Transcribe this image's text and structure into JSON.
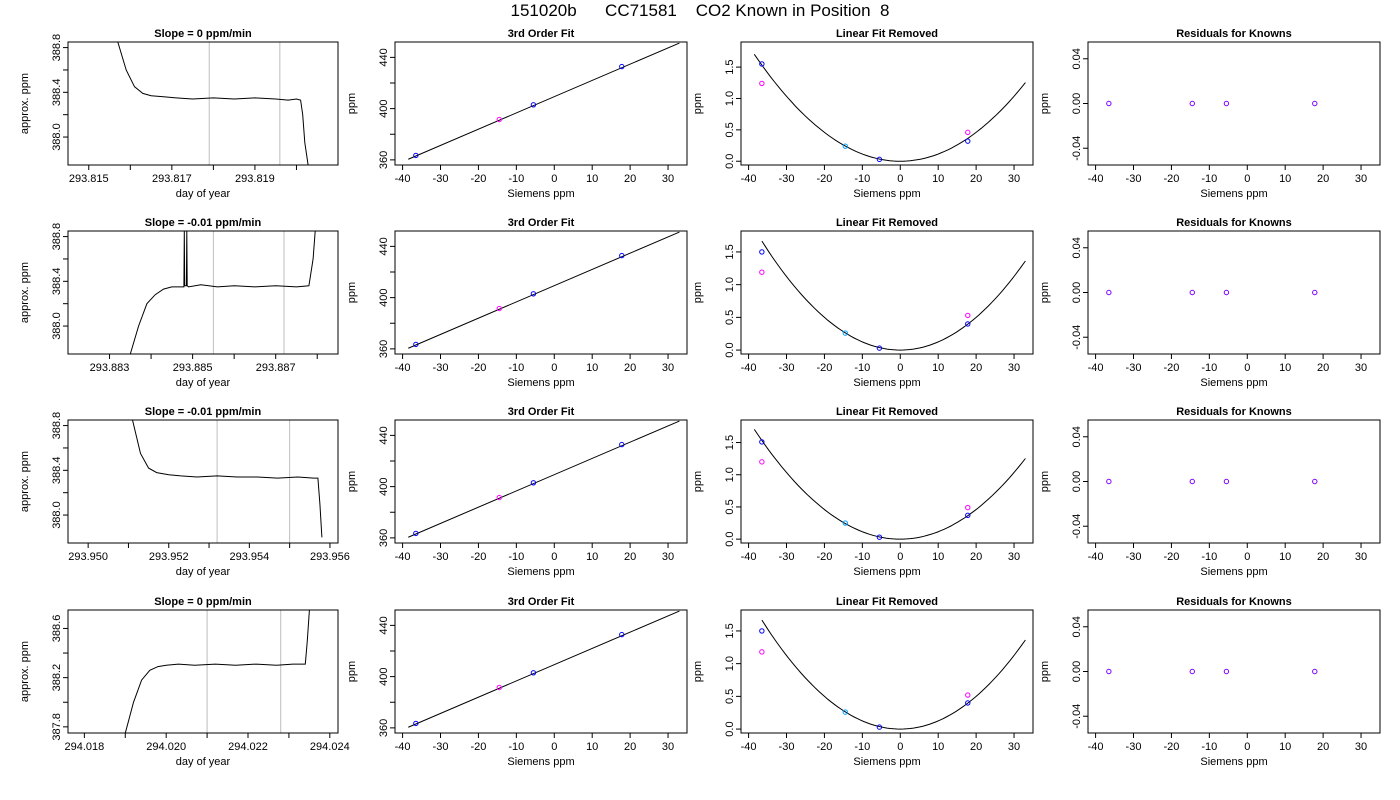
{
  "title": "151020b      CC71581    CO2 Known in Position  8",
  "colors": {
    "trace": "#000000",
    "gridline": "#bebebe",
    "point_blue": "#0000ff",
    "point_magenta": "#ff00ff",
    "point_cyan": "#00a0ff",
    "point_purple": "#8000ff",
    "outlier_red": "#ff0000"
  },
  "chart_data": [
    {
      "type": "line",
      "row": 0,
      "col": 0,
      "title": "Slope =  0  ppm/min",
      "xlabel": "day of year",
      "ylabel": "approx. ppm",
      "xlim": [
        293.8145,
        293.821
      ],
      "ylim": [
        387.75,
        388.85
      ],
      "xticks": [
        293.815,
        293.817,
        293.819
      ],
      "xminor": [
        293.816,
        293.818,
        293.82
      ],
      "yticks": [
        388.0,
        388.4,
        388.8
      ],
      "yminor": [
        388.2,
        388.6
      ],
      "vlines": [
        293.8179,
        293.8196
      ],
      "series": [
        {
          "x": [
            293.8157,
            293.8159,
            293.8161,
            293.8163,
            293.8165,
            293.8168,
            293.8171,
            293.8175,
            293.818,
            293.8185,
            293.819,
            293.8195,
            293.8198,
            293.82,
            293.8201,
            293.82015,
            293.8202,
            293.82028
          ],
          "y": [
            388.85,
            388.6,
            388.45,
            388.39,
            388.37,
            388.36,
            388.35,
            388.34,
            388.35,
            388.34,
            388.35,
            388.34,
            388.33,
            388.34,
            388.33,
            388.2,
            387.95,
            387.75
          ]
        }
      ]
    },
    {
      "type": "line",
      "row": 1,
      "col": 0,
      "title": "Slope =  -0.01  ppm/min",
      "xlabel": "day of year",
      "ylabel": "approx. ppm",
      "xlim": [
        293.882,
        293.8885
      ],
      "ylim": [
        387.75,
        388.85
      ],
      "xticks": [
        293.883,
        293.885,
        293.887
      ],
      "xminor": [
        293.884,
        293.886,
        293.888
      ],
      "yticks": [
        388.0,
        388.4,
        388.8
      ],
      "yminor": [
        388.2,
        388.6
      ],
      "vlines": [
        293.8855,
        293.8872
      ],
      "series": [
        {
          "x": [
            293.8835,
            293.8837,
            293.8839,
            293.8841,
            293.8843,
            293.8845,
            293.8847,
            293.88479,
            293.8848,
            293.88481,
            293.88485,
            293.88486,
            293.88487,
            293.8849,
            293.8852,
            293.8856,
            293.886,
            293.8865,
            293.887,
            293.8875,
            293.8878,
            293.8879,
            293.88795
          ],
          "y": [
            387.75,
            388.0,
            388.2,
            388.28,
            388.33,
            388.35,
            388.35,
            388.35,
            388.85,
            388.36,
            388.36,
            388.85,
            388.36,
            388.35,
            388.37,
            388.35,
            388.36,
            388.35,
            388.36,
            388.35,
            388.36,
            388.6,
            388.85
          ]
        }
      ]
    },
    {
      "type": "line",
      "row": 2,
      "col": 0,
      "title": "Slope =  -0.01  ppm/min",
      "xlabel": "day of year",
      "ylabel": "approx. ppm",
      "xlim": [
        293.9495,
        293.9562
      ],
      "ylim": [
        387.75,
        388.85
      ],
      "xticks": [
        293.95,
        293.952,
        293.954,
        293.956
      ],
      "xminor": [
        293.951,
        293.953,
        293.955
      ],
      "yticks": [
        388.0,
        388.4,
        388.8
      ],
      "yminor": [
        388.2,
        388.6
      ],
      "vlines": [
        293.9532,
        293.955
      ],
      "series": [
        {
          "x": [
            293.9511,
            293.9513,
            293.9515,
            293.9517,
            293.952,
            293.9523,
            293.9527,
            293.9532,
            293.9537,
            293.9542,
            293.9547,
            293.9552,
            293.9556,
            293.9557,
            293.95575,
            293.9558
          ],
          "y": [
            388.85,
            388.55,
            388.42,
            388.38,
            388.36,
            388.35,
            388.34,
            388.35,
            388.34,
            388.34,
            388.33,
            388.34,
            388.33,
            388.33,
            388.1,
            387.8
          ]
        }
      ]
    },
    {
      "type": "line",
      "row": 3,
      "col": 0,
      "title": "Slope =  0  ppm/min",
      "xlabel": "day of year",
      "ylabel": "approx. ppm",
      "xlim": [
        294.0176,
        294.0242
      ],
      "ylim": [
        387.75,
        388.75
      ],
      "xticks": [
        294.018,
        294.02,
        294.022,
        294.024
      ],
      "xminor": [
        294.019,
        294.021,
        294.023
      ],
      "yticks": [
        387.8,
        388.2,
        388.6
      ],
      "yminor": [
        388.0,
        388.4
      ],
      "vlines": [
        294.021,
        294.0228
      ],
      "series": [
        {
          "x": [
            294.019,
            294.0192,
            294.0194,
            294.0196,
            294.0198,
            294.02,
            294.0203,
            294.0207,
            294.0212,
            294.0217,
            294.0222,
            294.0227,
            294.0231,
            294.0234,
            294.02345,
            294.0235
          ],
          "y": [
            387.75,
            388.0,
            388.18,
            388.26,
            388.29,
            388.3,
            388.31,
            388.3,
            388.31,
            388.3,
            388.31,
            388.3,
            388.31,
            388.31,
            388.5,
            388.75
          ]
        }
      ]
    },
    {
      "type": "scatter",
      "row": 0,
      "col": 1,
      "title": "3rd Order Fit",
      "xlabel": "Siemens ppm",
      "ylabel": "ppm",
      "xlim": [
        -42,
        35
      ],
      "ylim": [
        356,
        452
      ],
      "xticks": [
        -40,
        -30,
        -20,
        -10,
        0,
        10,
        20,
        30
      ],
      "yticks": [
        360,
        400,
        440
      ],
      "yminor": [
        380,
        420
      ],
      "fit_line": {
        "x": [
          -38.5,
          33
        ],
        "y": [
          360.5,
          451.2
        ]
      },
      "points": [
        {
          "x": -36.5,
          "y": 363.5,
          "color": "#0000ff"
        },
        {
          "x": -14.5,
          "y": 391.5,
          "color": "#ff00ff"
        },
        {
          "x": -5.5,
          "y": 403.0,
          "color": "#0000ff"
        },
        {
          "x": 17.8,
          "y": 432.8,
          "color": "#0000ff"
        }
      ]
    },
    {
      "type": "scatter",
      "row": 1,
      "col": 1,
      "title": "3rd Order Fit",
      "xlabel": "Siemens ppm",
      "ylabel": "ppm",
      "xlim": [
        -42,
        35
      ],
      "ylim": [
        356,
        452
      ],
      "xticks": [
        -40,
        -30,
        -20,
        -10,
        0,
        10,
        20,
        30
      ],
      "yticks": [
        360,
        400,
        440
      ],
      "yminor": [
        380,
        420
      ],
      "fit_line": {
        "x": [
          -38.5,
          33
        ],
        "y": [
          360.5,
          451.2
        ]
      },
      "points": [
        {
          "x": -36.5,
          "y": 363.5,
          "color": "#0000ff"
        },
        {
          "x": -14.5,
          "y": 391.5,
          "color": "#ff00ff"
        },
        {
          "x": -5.5,
          "y": 403.0,
          "color": "#0000ff"
        },
        {
          "x": 17.8,
          "y": 432.8,
          "color": "#0000ff"
        }
      ]
    },
    {
      "type": "scatter",
      "row": 2,
      "col": 1,
      "title": "3rd Order Fit",
      "xlabel": "Siemens ppm",
      "ylabel": "ppm",
      "xlim": [
        -42,
        35
      ],
      "ylim": [
        356,
        452
      ],
      "xticks": [
        -40,
        -30,
        -20,
        -10,
        0,
        10,
        20,
        30
      ],
      "yticks": [
        360,
        400,
        440
      ],
      "yminor": [
        380,
        420
      ],
      "fit_line": {
        "x": [
          -38.5,
          33
        ],
        "y": [
          360.5,
          451.2
        ]
      },
      "points": [
        {
          "x": -36.5,
          "y": 363.5,
          "color": "#0000ff"
        },
        {
          "x": -14.5,
          "y": 391.5,
          "color": "#ff00ff"
        },
        {
          "x": -5.5,
          "y": 403.0,
          "color": "#0000ff"
        },
        {
          "x": 17.8,
          "y": 432.8,
          "color": "#0000ff"
        }
      ]
    },
    {
      "type": "scatter",
      "row": 3,
      "col": 1,
      "title": "3rd Order Fit",
      "xlabel": "Siemens ppm",
      "ylabel": "ppm",
      "xlim": [
        -42,
        35
      ],
      "ylim": [
        356,
        452
      ],
      "xticks": [
        -40,
        -30,
        -20,
        -10,
        0,
        10,
        20,
        30
      ],
      "yticks": [
        360,
        400,
        440
      ],
      "yminor": [
        380,
        420
      ],
      "fit_line": {
        "x": [
          -38.5,
          33
        ],
        "y": [
          360.5,
          451.2
        ]
      },
      "points": [
        {
          "x": -36.5,
          "y": 363.5,
          "color": "#0000ff"
        },
        {
          "x": -14.5,
          "y": 391.5,
          "color": "#ff00ff"
        },
        {
          "x": -5.5,
          "y": 403.0,
          "color": "#0000ff"
        },
        {
          "x": 17.8,
          "y": 432.8,
          "color": "#0000ff"
        }
      ]
    },
    {
      "type": "scatter",
      "row": 0,
      "col": 2,
      "title": "Linear Fit Removed",
      "xlabel": "Siemens ppm",
      "ylabel": "ppm",
      "xlim": [
        -42,
        35
      ],
      "ylim": [
        -0.06,
        1.9
      ],
      "xticks": [
        -40,
        -30,
        -20,
        -10,
        0,
        10,
        20,
        30
      ],
      "yticks": [
        0.0,
        0.5,
        1.0,
        1.5
      ],
      "curve": {
        "x_from": -38.5,
        "x_to": 33,
        "coef": 0.00115
      },
      "points": [
        {
          "x": -36.5,
          "y": 1.55,
          "color": "#0000ff"
        },
        {
          "x": -36.5,
          "y": 1.24,
          "color": "#ff00ff"
        },
        {
          "x": -14.5,
          "y": 0.24,
          "color": "#00a0ff"
        },
        {
          "x": -5.5,
          "y": 0.03,
          "color": "#0000ff"
        },
        {
          "x": 17.8,
          "y": 0.32,
          "color": "#0000ff"
        },
        {
          "x": 17.8,
          "y": 0.46,
          "color": "#ff00ff"
        }
      ]
    },
    {
      "type": "scatter",
      "row": 1,
      "col": 2,
      "title": "Linear Fit Removed",
      "xlabel": "Siemens ppm",
      "ylabel": "ppm",
      "xlim": [
        -42,
        35
      ],
      "ylim": [
        -0.06,
        1.82
      ],
      "xticks": [
        -40,
        -30,
        -20,
        -10,
        0,
        10,
        20,
        30
      ],
      "yticks": [
        0.0,
        0.5,
        1.0,
        1.5
      ],
      "curve": {
        "x_from": -36.5,
        "x_to": 33,
        "coef": 0.00125
      },
      "points": [
        {
          "x": -36.5,
          "y": 1.5,
          "color": "#0000ff"
        },
        {
          "x": -36.5,
          "y": 1.19,
          "color": "#ff00ff"
        },
        {
          "x": -14.5,
          "y": 0.26,
          "color": "#00a0ff"
        },
        {
          "x": -5.5,
          "y": 0.03,
          "color": "#0000ff"
        },
        {
          "x": 17.8,
          "y": 0.4,
          "color": "#0000ff"
        },
        {
          "x": 17.8,
          "y": 0.53,
          "color": "#ff00ff"
        }
      ]
    },
    {
      "type": "scatter",
      "row": 2,
      "col": 2,
      "title": "Linear Fit Removed",
      "xlabel": "Siemens ppm",
      "ylabel": "ppm",
      "xlim": [
        -42,
        35
      ],
      "ylim": [
        -0.06,
        1.85
      ],
      "xticks": [
        -40,
        -30,
        -20,
        -10,
        0,
        10,
        20,
        30
      ],
      "yticks": [
        0.0,
        0.5,
        1.0,
        1.5
      ],
      "curve": {
        "x_from": -38.5,
        "x_to": 33,
        "coef": 0.00115
      },
      "points": [
        {
          "x": -36.5,
          "y": 1.51,
          "color": "#0000ff"
        },
        {
          "x": -36.5,
          "y": 1.2,
          "color": "#ff00ff"
        },
        {
          "x": -14.5,
          "y": 0.25,
          "color": "#00a0ff"
        },
        {
          "x": -5.5,
          "y": 0.03,
          "color": "#0000ff"
        },
        {
          "x": 17.8,
          "y": 0.37,
          "color": "#0000ff"
        },
        {
          "x": 17.8,
          "y": 0.49,
          "color": "#ff00ff"
        }
      ]
    },
    {
      "type": "scatter",
      "row": 3,
      "col": 2,
      "title": "Linear Fit Removed",
      "xlabel": "Siemens ppm",
      "ylabel": "ppm",
      "xlim": [
        -42,
        35
      ],
      "ylim": [
        -0.06,
        1.82
      ],
      "xticks": [
        -40,
        -30,
        -20,
        -10,
        0,
        10,
        20,
        30
      ],
      "yticks": [
        0.0,
        0.5,
        1.0,
        1.5
      ],
      "curve": {
        "x_from": -36.5,
        "x_to": 33,
        "coef": 0.00125
      },
      "points": [
        {
          "x": -36.5,
          "y": 1.5,
          "color": "#0000ff"
        },
        {
          "x": -36.5,
          "y": 1.18,
          "color": "#ff00ff"
        },
        {
          "x": -14.5,
          "y": 0.26,
          "color": "#00a0ff"
        },
        {
          "x": -5.5,
          "y": 0.03,
          "color": "#0000ff"
        },
        {
          "x": 17.8,
          "y": 0.4,
          "color": "#0000ff"
        },
        {
          "x": 17.8,
          "y": 0.52,
          "color": "#ff00ff"
        }
      ]
    },
    {
      "type": "scatter",
      "row": 0,
      "col": 3,
      "title": "Residuals for Knowns",
      "xlabel": "Siemens ppm",
      "ylabel": "ppm",
      "xlim": [
        -42,
        35
      ],
      "ylim": [
        -0.055,
        0.055
      ],
      "xticks": [
        -40,
        -30,
        -20,
        -10,
        0,
        10,
        20,
        30
      ],
      "yticks": [
        -0.04,
        0.0,
        0.04
      ],
      "points": [
        {
          "x": -36.5,
          "y": 0.0,
          "color": "#8000ff"
        },
        {
          "x": -14.5,
          "y": 0.0,
          "color": "#8000ff"
        },
        {
          "x": -5.5,
          "y": 0.0,
          "color": "#8000ff"
        },
        {
          "x": 17.8,
          "y": 0.0,
          "color": "#8000ff"
        }
      ]
    },
    {
      "type": "scatter",
      "row": 1,
      "col": 3,
      "title": "Residuals for Knowns",
      "xlabel": "Siemens ppm",
      "ylabel": "ppm",
      "xlim": [
        -42,
        35
      ],
      "ylim": [
        -0.055,
        0.055
      ],
      "xticks": [
        -40,
        -30,
        -20,
        -10,
        0,
        10,
        20,
        30
      ],
      "yticks": [
        -0.04,
        0.0,
        0.04
      ],
      "points": [
        {
          "x": -36.5,
          "y": 0.0,
          "color": "#8000ff"
        },
        {
          "x": -14.5,
          "y": 0.0,
          "color": "#8000ff"
        },
        {
          "x": -5.5,
          "y": 0.0,
          "color": "#8000ff"
        },
        {
          "x": 17.8,
          "y": 0.0,
          "color": "#8000ff"
        }
      ]
    },
    {
      "type": "scatter",
      "row": 2,
      "col": 3,
      "title": "Residuals for Knowns",
      "xlabel": "Siemens ppm",
      "ylabel": "ppm",
      "xlim": [
        -42,
        35
      ],
      "ylim": [
        -0.055,
        0.055
      ],
      "xticks": [
        -40,
        -30,
        -20,
        -10,
        0,
        10,
        20,
        30
      ],
      "yticks": [
        -0.04,
        0.0,
        0.04
      ],
      "points": [
        {
          "x": -36.5,
          "y": 0.0,
          "color": "#8000ff"
        },
        {
          "x": -14.5,
          "y": 0.0,
          "color": "#8000ff"
        },
        {
          "x": -5.5,
          "y": 0.0,
          "color": "#8000ff"
        },
        {
          "x": 17.8,
          "y": 0.0,
          "color": "#8000ff"
        }
      ]
    },
    {
      "type": "scatter",
      "row": 3,
      "col": 3,
      "title": "Residuals for Knowns",
      "xlabel": "Siemens ppm",
      "ylabel": "ppm",
      "xlim": [
        -42,
        35
      ],
      "ylim": [
        -0.055,
        0.055
      ],
      "xticks": [
        -40,
        -30,
        -20,
        -10,
        0,
        10,
        20,
        30
      ],
      "yticks": [
        -0.04,
        0.0,
        0.04
      ],
      "points": [
        {
          "x": -36.5,
          "y": 0.0,
          "color": "#8000ff"
        },
        {
          "x": -14.5,
          "y": 0.0,
          "color": "#8000ff"
        },
        {
          "x": -5.5,
          "y": 0.0,
          "color": "#8000ff"
        },
        {
          "x": 17.8,
          "y": 0.0,
          "color": "#8000ff"
        }
      ]
    }
  ]
}
